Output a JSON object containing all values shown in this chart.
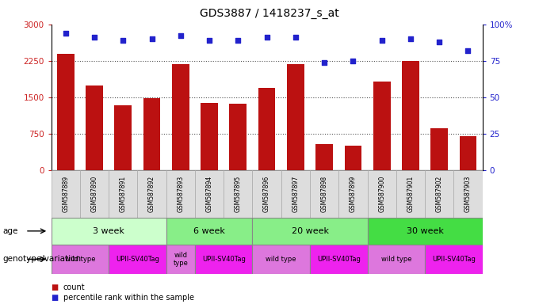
{
  "title": "GDS3887 / 1418237_s_at",
  "samples": [
    "GSM587889",
    "GSM587890",
    "GSM587891",
    "GSM587892",
    "GSM587893",
    "GSM587894",
    "GSM587895",
    "GSM587896",
    "GSM587897",
    "GSM587898",
    "GSM587899",
    "GSM587900",
    "GSM587901",
    "GSM587902",
    "GSM587903"
  ],
  "counts": [
    2400,
    1750,
    1330,
    1480,
    2180,
    1380,
    1360,
    1700,
    2180,
    530,
    510,
    1820,
    2250,
    870,
    700
  ],
  "percentiles": [
    94,
    91,
    89,
    90,
    92,
    89,
    89,
    91,
    91,
    74,
    75,
    89,
    90,
    88,
    82
  ],
  "ylim_left": [
    0,
    3000
  ],
  "ylim_right": [
    0,
    100
  ],
  "yticks_left": [
    0,
    750,
    1500,
    2250,
    3000
  ],
  "yticks_left_labels": [
    "0",
    "750",
    "1500",
    "2250",
    "3000"
  ],
  "yticks_right": [
    0,
    25,
    50,
    75,
    100
  ],
  "yticks_right_labels": [
    "0",
    "25",
    "50",
    "75",
    "100%"
  ],
  "bar_color": "#bb1111",
  "dot_color": "#2222cc",
  "age_groups": [
    {
      "label": "3 week",
      "start": 0,
      "end": 4,
      "color": "#ccffcc"
    },
    {
      "label": "6 week",
      "start": 4,
      "end": 7,
      "color": "#88ee88"
    },
    {
      "label": "20 week",
      "start": 7,
      "end": 11,
      "color": "#88ee88"
    },
    {
      "label": "30 week",
      "start": 11,
      "end": 15,
      "color": "#44dd44"
    }
  ],
  "genotype_groups": [
    {
      "label": "wild type",
      "start": 0,
      "end": 2,
      "color": "#dd77dd"
    },
    {
      "label": "UPII-SV40Tag",
      "start": 2,
      "end": 4,
      "color": "#ee22ee"
    },
    {
      "label": "wild\ntype",
      "start": 4,
      "end": 5,
      "color": "#dd77dd"
    },
    {
      "label": "UPII-SV40Tag",
      "start": 5,
      "end": 7,
      "color": "#ee22ee"
    },
    {
      "label": "wild type",
      "start": 7,
      "end": 9,
      "color": "#dd77dd"
    },
    {
      "label": "UPII-SV40Tag",
      "start": 9,
      "end": 11,
      "color": "#ee22ee"
    },
    {
      "label": "wild type",
      "start": 11,
      "end": 13,
      "color": "#dd77dd"
    },
    {
      "label": "UPII-SV40Tag",
      "start": 13,
      "end": 15,
      "color": "#ee22ee"
    }
  ],
  "legend_items": [
    {
      "label": "count",
      "color": "#bb1111"
    },
    {
      "label": "percentile rank within the sample",
      "color": "#2222cc"
    }
  ],
  "row_label_age": "age",
  "row_label_genotype": "genotype/variation",
  "background_color": "#ffffff",
  "grid_color": "#555555",
  "tick_label_color_left": "#cc2222",
  "tick_label_color_right": "#2222cc",
  "sample_box_color": "#dddddd",
  "sample_box_edge": "#aaaaaa"
}
